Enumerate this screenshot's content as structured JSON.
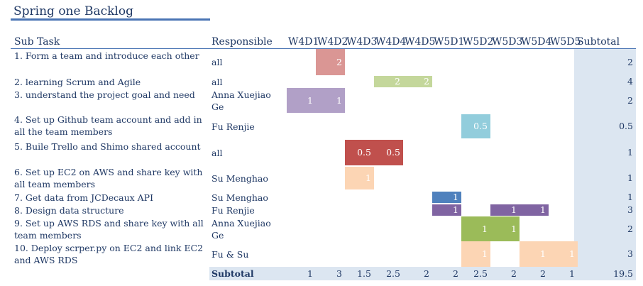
{
  "title": "Spring one Backlog",
  "headers": {
    "task": "Sub Task",
    "responsible": "Responsible",
    "days": [
      "W4D1",
      "W4D2",
      "W4D3",
      "W4D4",
      "W4D5",
      "W5D1",
      "W5D2",
      "W5D3",
      "W5D4",
      "W5D5"
    ],
    "subtotal": "Subtotal"
  },
  "colors": {
    "rose": "#da9694",
    "green": "#c4d79b",
    "purple": "#b1a0c7",
    "lightblue": "#92cddc",
    "red": "#c0504d",
    "peach": "#fcd5b4",
    "blue": "#4f81bd",
    "violet": "#8064a2",
    "olive": "#9bbb59"
  },
  "rows": [
    {
      "task": "1. Form a team and introduce each other",
      "responsible": "all",
      "cells": [
        "",
        "2",
        "",
        "",
        "",
        "",
        "",
        "",
        "",
        ""
      ],
      "subtotal": "2"
    },
    {
      "task": "2. learning Scrum and Agile",
      "responsible": "all",
      "cells": [
        "",
        "",
        "",
        "2",
        "2",
        "",
        "",
        "",
        "",
        ""
      ],
      "subtotal": "4"
    },
    {
      "task": "3. understand the project goal and need",
      "responsible": "Anna Xuejiao Ge",
      "cells": [
        "1",
        "1",
        "",
        "",
        "",
        "",
        "",
        "",
        "",
        ""
      ],
      "subtotal": "2"
    },
    {
      "task": "4. Set up Github team account and add in all the team members",
      "responsible": "Fu Renjie",
      "cells": [
        "",
        "",
        "",
        "",
        "",
        "",
        "0.5",
        "",
        "",
        ""
      ],
      "subtotal": "0.5"
    },
    {
      "task": "5. Buile Trello and Shimo shared account",
      "responsible": "all",
      "cells": [
        "",
        "",
        "0.5",
        "0.5",
        "",
        "",
        "",
        "",
        "",
        ""
      ],
      "subtotal": "1"
    },
    {
      "task": "6. Set up EC2 on AWS and share key with all team members",
      "responsible": "Su Menghao",
      "cells": [
        "",
        "",
        "1",
        "",
        "",
        "",
        "",
        "",
        "",
        ""
      ],
      "subtotal": "1"
    },
    {
      "task": "7. Get data from JCDecaux API",
      "responsible": "Su Menghao",
      "cells": [
        "",
        "",
        "",
        "",
        "",
        "1",
        "",
        "",
        "",
        ""
      ],
      "subtotal": "1"
    },
    {
      "task": "8. Design data structure",
      "responsible": "Fu Renjie",
      "cells": [
        "",
        "",
        "",
        "",
        "",
        "1",
        "",
        "1",
        "1",
        ""
      ],
      "subtotal": "3"
    },
    {
      "task": "9. Set up AWS RDS and share key with all team members",
      "responsible": "Anna Xuejiao Ge",
      "cells": [
        "",
        "",
        "",
        "",
        "",
        "",
        "1",
        "1",
        "",
        ""
      ],
      "subtotal": "2"
    },
    {
      "task": "10. Deploy scrper.py on EC2 and link EC2 and AWS RDS",
      "responsible": "Fu & Su",
      "cells": [
        "",
        "",
        "",
        "",
        "",
        "",
        "1",
        "",
        "1",
        "1"
      ],
      "subtotal": "3"
    }
  ],
  "footer": {
    "label": "Subtotal",
    "values": [
      "1",
      "3",
      "1.5",
      "2.5",
      "2",
      "2",
      "2.5",
      "2",
      "2",
      "1"
    ],
    "total": "19.5"
  }
}
